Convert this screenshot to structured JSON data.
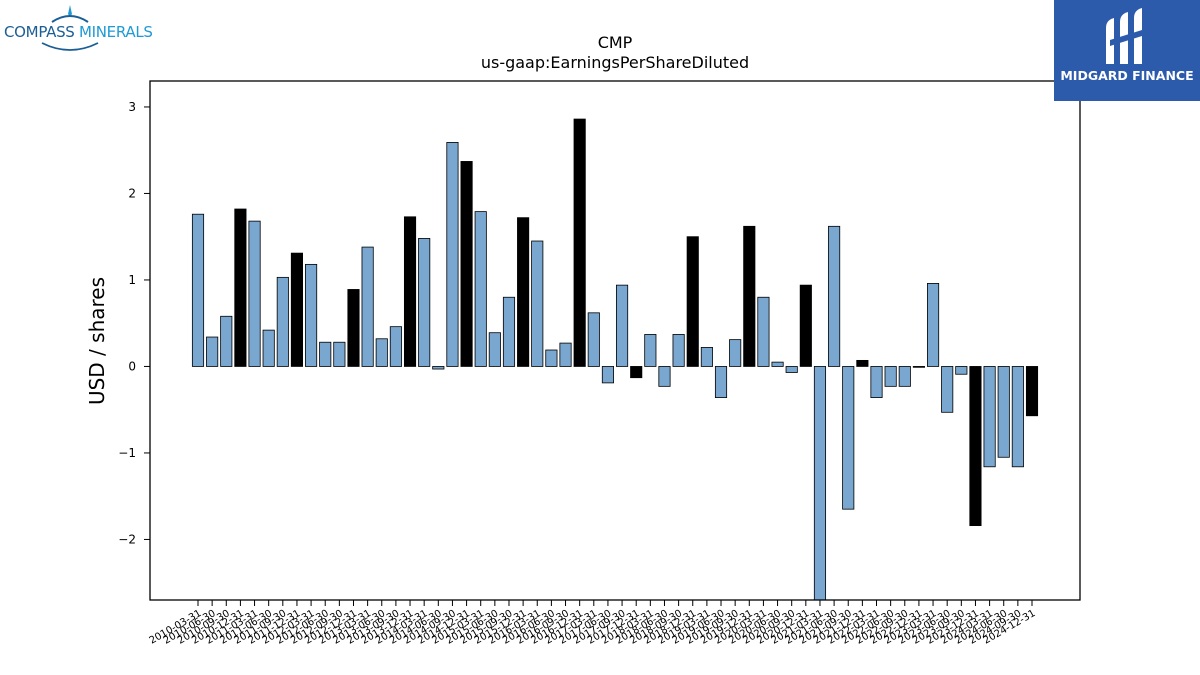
{
  "logos": {
    "left_brand": "COMPASS MINERALS",
    "left_brand_part1": "COMPASS",
    "left_brand_part2": "MINERALS",
    "right_brand": "MIDGARD FINANCE"
  },
  "colors": {
    "bar_light": "#7aa7cf",
    "bar_dark": "#000000",
    "right_logo_bg": "#2d5bac",
    "left_logo_text": "#1b5e95"
  },
  "chart_data": {
    "type": "bar",
    "title": "CMP",
    "subtitle": "us-gaap:EarningsPerShareDiluted",
    "xlabel": "",
    "ylabel": "USD / shares",
    "ylim": [
      -2.7,
      3.3
    ],
    "yticks": [
      -2,
      -1,
      0,
      1,
      2,
      3
    ],
    "ytick_labels": [
      "−2",
      "−1",
      "0",
      "1",
      "2",
      "3"
    ],
    "grid": false,
    "categories": [
      "2010-03-31",
      "2010-06-30",
      "2010-09-30",
      "2010-12-31",
      "2011-03-31",
      "2011-06-30",
      "2011-09-30",
      "2011-12-31",
      "2012-03-31",
      "2012-06-30",
      "2012-09-30",
      "2012-12-31",
      "2013-03-31",
      "2013-06-30",
      "2013-09-30",
      "2013-12-31",
      "2014-03-31",
      "2014-06-30",
      "2014-09-30",
      "2014-12-31",
      "2015-03-31",
      "2015-06-30",
      "2015-09-30",
      "2015-12-31",
      "2016-03-31",
      "2016-06-30",
      "2016-09-30",
      "2016-12-31",
      "2017-03-31",
      "2017-06-30",
      "2017-09-30",
      "2017-12-31",
      "2018-03-31",
      "2018-06-30",
      "2018-09-30",
      "2018-12-31",
      "2019-03-31",
      "2019-06-30",
      "2019-09-30",
      "2019-12-31",
      "2020-03-31",
      "2020-06-30",
      "2020-09-30",
      "2020-12-31",
      "2021-03-31",
      "2021-06-30",
      "2021-09-30",
      "2021-12-31",
      "2022-03-31",
      "2022-06-30",
      "2022-09-30",
      "2022-12-31",
      "2023-03-31",
      "2023-06-30",
      "2023-09-30",
      "2023-12-31",
      "2024-03-31",
      "2024-06-30",
      "2024-09-30",
      "2024-12-31"
    ],
    "values": [
      1.76,
      0.34,
      0.58,
      1.82,
      1.68,
      0.42,
      1.03,
      1.31,
      1.18,
      0.28,
      0.28,
      0.89,
      1.38,
      0.32,
      0.46,
      1.73,
      1.48,
      -0.03,
      2.59,
      2.37,
      1.79,
      0.39,
      0.8,
      1.72,
      1.45,
      0.19,
      0.27,
      2.86,
      0.62,
      -0.19,
      0.94,
      -0.13,
      0.37,
      -0.23,
      0.37,
      1.5,
      0.22,
      -0.36,
      0.31,
      1.62,
      0.8,
      0.05,
      -0.07,
      0.94,
      -2.72,
      1.62,
      -1.65,
      0.07,
      -0.36,
      -0.23,
      -0.23,
      -0.01,
      0.96,
      -0.53,
      -0.09,
      -1.84,
      -1.16,
      -1.05,
      -1.16,
      -0.57
    ],
    "bar_dark_every_n": 4,
    "bar_dark_offset": 3
  }
}
